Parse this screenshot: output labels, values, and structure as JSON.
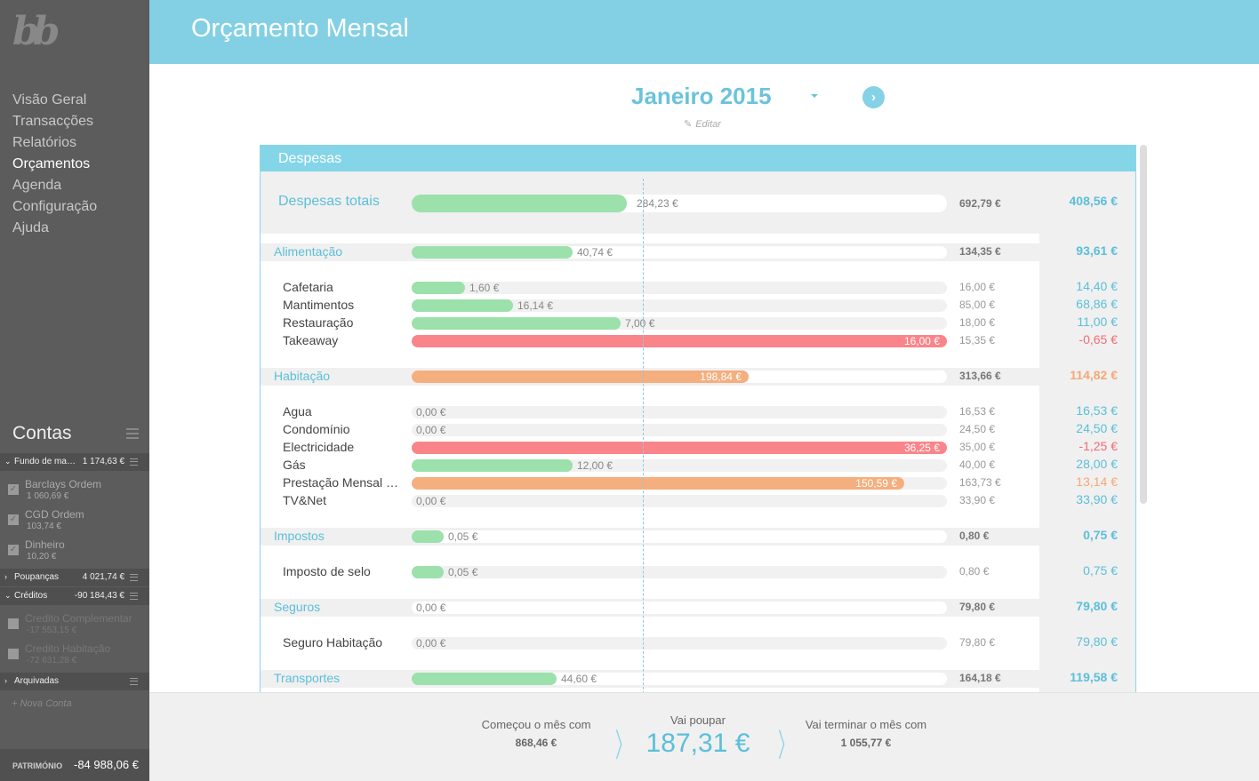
{
  "sidebar": {
    "logo": "bb",
    "nav": [
      "Visão Geral",
      "Transacções",
      "Relatórios",
      "Orçamentos",
      "Agenda",
      "Configuração",
      "Ajuda"
    ],
    "contas_title": "Contas",
    "groups": {
      "fundo": {
        "name": "Fundo de man...",
        "value": "1 174,63 €"
      },
      "poupancas": {
        "name": "Poupanças",
        "value": "4 021,74 €"
      },
      "creditos": {
        "name": "Créditos",
        "value": "-90 184,43 €"
      },
      "arquivadas": {
        "name": "Arquivadas"
      }
    },
    "accounts": {
      "barclays": {
        "name": "Barclays Ordem",
        "value": "1 060,69 €"
      },
      "cgd": {
        "name": "CGD Ordem",
        "value": "103,74 €"
      },
      "dinheiro": {
        "name": "Dinheiro",
        "value": "10,20 €"
      },
      "credito_comp": {
        "name": "Credito Complementar",
        "value": "-17 553,15 €"
      },
      "credito_hab": {
        "name": "Credito Habitação",
        "value": "-72 631,28 €"
      }
    },
    "nova_conta": "+ Nova Conta",
    "patrimonio_label": "PATRIMÓNIO",
    "patrimonio_value": "-84 988,06 €"
  },
  "header": {
    "title": "Orçamento Mensal"
  },
  "month": {
    "label": "Janeiro 2015",
    "edit": "Editar"
  },
  "panel": {
    "title": "Despesas",
    "total": {
      "name": "Despesas totais",
      "spent": "284,23 €",
      "budget": "692,79 €",
      "remaining": "408,56 €",
      "progress": 0.41
    }
  },
  "rows": [
    {
      "kind": "cat",
      "name": "Alimentação",
      "spent": "40,74 €",
      "budget": "134,35 €",
      "remaining": "93,61 €",
      "progress": 0.3,
      "color": "green",
      "status": "ok"
    },
    {
      "kind": "item",
      "name": "Cafetaria",
      "spent": "1,60 €",
      "budget": "16,00 €",
      "remaining": "14,40 €",
      "progress": 0.1,
      "color": "green",
      "status": "ok"
    },
    {
      "kind": "item",
      "name": "Mantimentos",
      "spent": "16,14 €",
      "budget": "85,00 €",
      "remaining": "68,86 €",
      "progress": 0.19,
      "color": "green",
      "status": "ok"
    },
    {
      "kind": "item",
      "name": "Restauração",
      "spent": "7,00 €",
      "budget": "18,00 €",
      "remaining": "11,00 €",
      "progress": 0.39,
      "color": "green",
      "status": "ok"
    },
    {
      "kind": "item",
      "name": "Takeaway",
      "spent": "16,00 €",
      "budget": "15,35 €",
      "remaining": "-0,65 €",
      "progress": 1.0,
      "color": "red",
      "status": "neg"
    },
    {
      "kind": "cat",
      "name": "Habitação",
      "spent": "198,84 €",
      "budget": "313,66 €",
      "remaining": "114,82 €",
      "progress": 0.63,
      "color": "orange",
      "status": "warn"
    },
    {
      "kind": "item",
      "name": "Agua",
      "spent": "0,00 €",
      "budget": "16,53 €",
      "remaining": "16,53 €",
      "progress": 0,
      "color": "green",
      "status": "ok"
    },
    {
      "kind": "item",
      "name": "Condomínio",
      "spent": "0,00 €",
      "budget": "24,50 €",
      "remaining": "24,50 €",
      "progress": 0,
      "color": "green",
      "status": "ok"
    },
    {
      "kind": "item",
      "name": "Electricidade",
      "spent": "36,25 €",
      "budget": "35,00 €",
      "remaining": "-1,25 €",
      "progress": 1.0,
      "color": "red",
      "status": "neg"
    },
    {
      "kind": "item",
      "name": "Gás",
      "spent": "12,00 €",
      "budget": "40,00 €",
      "remaining": "28,00 €",
      "progress": 0.3,
      "color": "green",
      "status": "ok"
    },
    {
      "kind": "item",
      "name": "Prestação Mensal (...",
      "spent": "150,59 €",
      "budget": "163,73 €",
      "remaining": "13,14 €",
      "progress": 0.92,
      "color": "orange",
      "status": "warn"
    },
    {
      "kind": "item",
      "name": "TV&Net",
      "spent": "0,00 €",
      "budget": "33,90 €",
      "remaining": "33,90 €",
      "progress": 0,
      "color": "green",
      "status": "ok"
    },
    {
      "kind": "cat",
      "name": "Impostos",
      "spent": "0,05 €",
      "budget": "0,80 €",
      "remaining": "0,75 €",
      "progress": 0.06,
      "color": "green",
      "status": "ok"
    },
    {
      "kind": "item",
      "name": "Imposto de selo",
      "spent": "0,05 €",
      "budget": "0,80 €",
      "remaining": "0,75 €",
      "progress": 0.06,
      "color": "green",
      "status": "ok"
    },
    {
      "kind": "cat",
      "name": "Seguros",
      "spent": "0,00 €",
      "budget": "79,80 €",
      "remaining": "79,80 €",
      "progress": 0,
      "color": "green",
      "status": "ok"
    },
    {
      "kind": "item",
      "name": "Seguro Habitação",
      "spent": "0,00 €",
      "budget": "79,80 €",
      "remaining": "79,80 €",
      "progress": 0,
      "color": "green",
      "status": "ok"
    },
    {
      "kind": "cat",
      "name": "Transportes",
      "spent": "44,60 €",
      "budget": "164,18 €",
      "remaining": "119,58 €",
      "progress": 0.27,
      "color": "green",
      "status": "ok"
    }
  ],
  "footer": {
    "start_label": "Começou o mês com",
    "start_value": "868,46 €",
    "save_label": "Vai poupar",
    "save_value": "187,31 €",
    "end_label": "Vai terminar o mês com",
    "end_value": "1 055,77 €"
  },
  "colors": {
    "accent": "#83d0e5",
    "green": "#9ce0ac",
    "orange": "#f5ae7e",
    "red": "#f9858a",
    "sidebar": "#5c5c5c"
  }
}
